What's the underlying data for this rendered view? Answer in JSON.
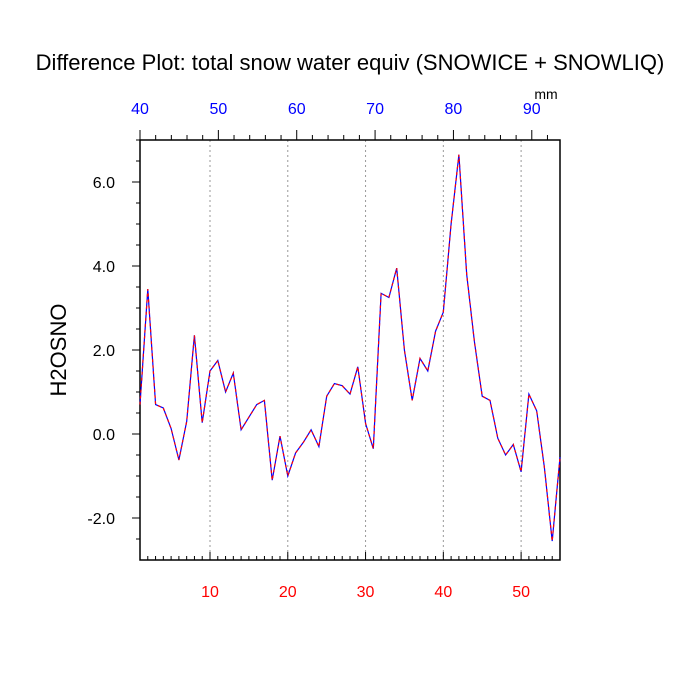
{
  "chart_data": {
    "type": "line",
    "title": "Difference Plot: total snow water equiv (SNOWICE + SNOWLIQ)",
    "ylabel": "H2OSNO",
    "top_axis_unit": "mm",
    "xlim": [
      1,
      55
    ],
    "ylim": [
      -3,
      7
    ],
    "grid": "vertical dotted lines at bottom major ticks",
    "colors": {
      "line_main": "#0000ff",
      "line_overlay": "#ff0000",
      "bottom_tick_labels": "#ff0000",
      "top_tick_labels": "#0000ff",
      "axes": "#000000",
      "grid": "#999999"
    },
    "bottom_ticks": {
      "values": [
        10,
        20,
        30,
        40,
        50
      ],
      "labels": [
        "10",
        "20",
        "30",
        "40",
        "50"
      ]
    },
    "top_ticks": {
      "values": [
        40,
        50,
        60,
        70,
        80,
        90
      ],
      "labels": [
        "40",
        "50",
        "60",
        "70",
        "80",
        "90"
      ]
    },
    "y_ticks": {
      "values": [
        -2,
        0,
        2,
        4,
        6
      ],
      "labels": [
        "-2.0",
        "0.0",
        "2.0",
        "4.0",
        "6.0"
      ]
    },
    "series": [
      {
        "x": [
          1,
          2,
          3,
          4,
          5,
          6,
          7,
          8,
          9,
          10,
          11,
          12,
          13,
          14,
          15,
          16,
          17,
          18,
          19,
          20,
          21,
          22,
          23,
          24,
          25,
          26,
          27,
          28,
          29,
          30,
          31,
          32,
          33,
          34,
          35,
          36,
          37,
          38,
          39,
          40,
          41,
          42,
          43,
          44,
          45,
          46,
          47,
          48,
          49,
          50,
          51,
          52,
          53,
          54,
          55
        ],
        "y": [
          0.7,
          3.45,
          0.7,
          0.62,
          0.13,
          -0.62,
          0.3,
          2.35,
          0.27,
          1.5,
          1.75,
          1.0,
          1.45,
          0.1,
          0.4,
          0.7,
          0.8,
          -1.1,
          -0.05,
          -1.0,
          -0.45,
          -0.2,
          0.1,
          -0.3,
          0.9,
          1.2,
          1.15,
          0.95,
          1.6,
          0.25,
          -0.35,
          3.35,
          3.25,
          3.95,
          2.0,
          0.8,
          1.8,
          1.5,
          2.45,
          2.9,
          5.0,
          6.65,
          3.8,
          2.2,
          0.9,
          0.8,
          -0.1,
          -0.5,
          -0.25,
          -0.9,
          0.95,
          0.55,
          -0.8,
          -2.55,
          -0.55
        ]
      }
    ]
  }
}
